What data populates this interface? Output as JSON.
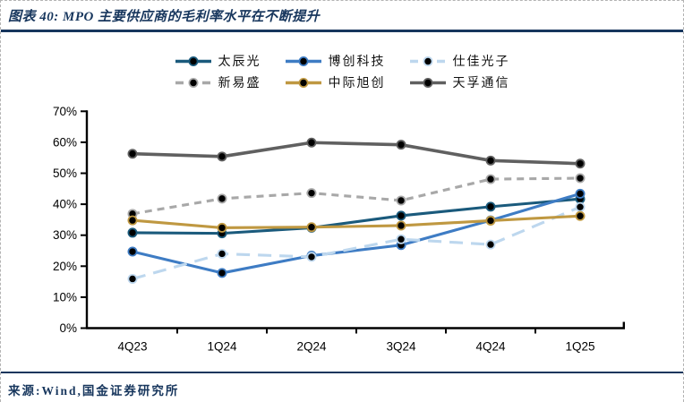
{
  "header": {
    "title": "图表 40: MPO 主要供应商的毛利率水平在不断提升"
  },
  "footer": {
    "source": "来源:Wind,国金证券研究所"
  },
  "colors": {
    "accent_navy": "#17365d",
    "axis": "#000000",
    "page_border_dash": "#b3b3b3",
    "marker_core": "#000000"
  },
  "chart_data": {
    "type": "line",
    "title": "",
    "xlabel": "",
    "ylabel": "",
    "x": [
      "4Q23",
      "1Q24",
      "2Q24",
      "3Q24",
      "4Q24",
      "1Q25"
    ],
    "yticks": [
      "0%",
      "10%",
      "20%",
      "30%",
      "40%",
      "50%",
      "60%",
      "70%"
    ],
    "ylim": [
      0,
      70
    ],
    "ytick_step": 10,
    "grid": false,
    "legend_position": "top",
    "legend_rows": [
      [
        0,
        1,
        2
      ],
      [
        3,
        4,
        5
      ]
    ],
    "series": [
      {
        "name": "太辰光",
        "color": "#1a5a7c",
        "dash": "solid",
        "values": [
          30.8,
          30.6,
          32.4,
          36.3,
          39.2,
          41.7
        ]
      },
      {
        "name": "博创科技",
        "color": "#3e7cc4",
        "dash": "solid",
        "values": [
          24.7,
          17.8,
          23.4,
          26.8,
          34.8,
          43.4
        ]
      },
      {
        "name": "仕佳光子",
        "color": "#bdd7ee",
        "dash": "long-dash",
        "values": [
          15.9,
          24.0,
          23.0,
          28.7,
          27.0,
          39.1
        ]
      },
      {
        "name": "新易盛",
        "color": "#a8a8a8",
        "dash": "dash",
        "values": [
          36.9,
          41.8,
          43.6,
          41.2,
          48.1,
          48.4
        ]
      },
      {
        "name": "中际旭创",
        "color": "#bf9841",
        "dash": "solid",
        "values": [
          34.8,
          32.4,
          32.6,
          33.1,
          34.7,
          36.2
        ]
      },
      {
        "name": "天孚通信",
        "color": "#606060",
        "dash": "solid",
        "values": [
          56.3,
          55.4,
          59.9,
          59.2,
          54.1,
          53.1
        ]
      }
    ]
  }
}
